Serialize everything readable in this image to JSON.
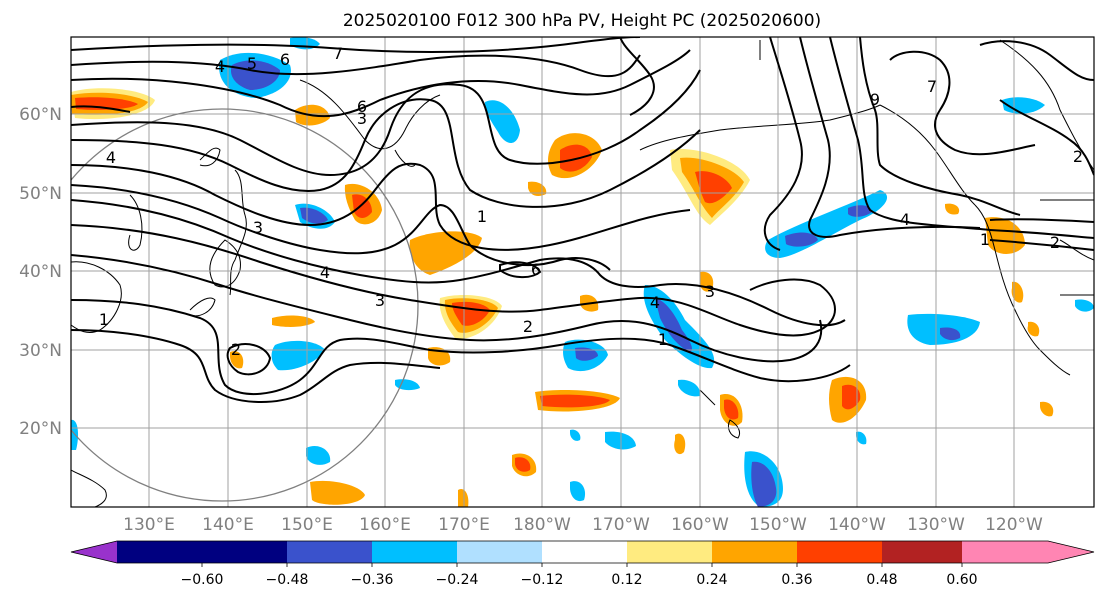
{
  "title": "2025020100 F012 300 hPa PV, Height PC (2025020600)",
  "map": {
    "lat_labels": [
      "60°N",
      "50°N",
      "40°N",
      "30°N",
      "20°N"
    ],
    "lon_labels": [
      "130°E",
      "140°E",
      "150°E",
      "160°E",
      "170°E",
      "180°W",
      "170°W",
      "160°W",
      "150°W",
      "140°W",
      "130°W",
      "120°W"
    ],
    "gridlines": true,
    "line_color": "#000000",
    "grid_color": "#a0a0a0"
  },
  "contour_labels": [
    "5",
    "6",
    "7",
    "4",
    "6",
    "3",
    "4",
    "9",
    "7",
    "2",
    "4",
    "3",
    "4",
    "3",
    "2",
    "6",
    "3",
    "1",
    "2",
    "4",
    "1",
    "1",
    "2",
    "1"
  ],
  "colorbar": {
    "colors": [
      "#9932cc",
      "#000080",
      "#3a52cc",
      "#00bfff",
      "#b0e0ff",
      "#ffffff",
      "#ffeb80",
      "#ffa500",
      "#ff4000",
      "#b22222",
      "#ff85b3"
    ],
    "labels": [
      "−0.60",
      "−0.48",
      "−0.36",
      "−0.24",
      "−0.12",
      "0.12",
      "0.24",
      "0.36",
      "0.48",
      "0.60"
    ]
  }
}
